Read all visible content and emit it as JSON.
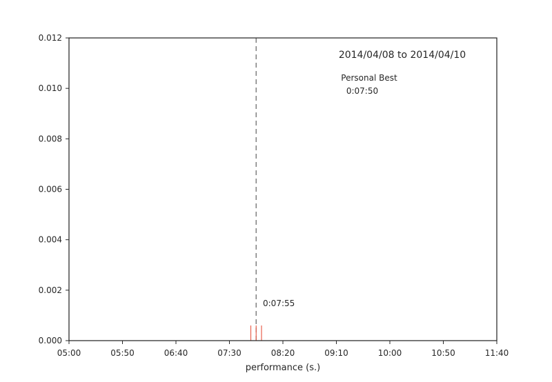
{
  "chart_data": {
    "type": "line",
    "title": "2014/04/08 to 2014/04/10",
    "xlabel": "performance (s.)",
    "ylabel": "",
    "xlim_seconds": [
      300,
      700
    ],
    "ylim": [
      0,
      0.012
    ],
    "grid": false,
    "x_ticks": [
      {
        "value": 300,
        "label": "05:00"
      },
      {
        "value": 350,
        "label": "05:50"
      },
      {
        "value": 400,
        "label": "06:40"
      },
      {
        "value": 450,
        "label": "07:30"
      },
      {
        "value": 500,
        "label": "08:20"
      },
      {
        "value": 550,
        "label": "09:10"
      },
      {
        "value": 600,
        "label": "10:00"
      },
      {
        "value": 650,
        "label": "10:50"
      },
      {
        "value": 700,
        "label": "11:40"
      }
    ],
    "y_ticks": [
      {
        "value": 0.0,
        "label": "0.000"
      },
      {
        "value": 0.002,
        "label": "0.002"
      },
      {
        "value": 0.004,
        "label": "0.004"
      },
      {
        "value": 0.006,
        "label": "0.006"
      },
      {
        "value": 0.008,
        "label": "0.008"
      },
      {
        "value": 0.01,
        "label": "0.010"
      },
      {
        "value": 0.012,
        "label": "0.012"
      }
    ],
    "rug_points_seconds": [
      470,
      475,
      480
    ],
    "rug_height": 0.0006,
    "rug_color": "#e8604c",
    "vline": {
      "x_seconds": 475,
      "color": "#808080",
      "style": "dashed"
    },
    "annotations": {
      "personal_best_label": "Personal Best",
      "personal_best_value": "0:07:50",
      "vline_label": "0:07:55"
    }
  }
}
